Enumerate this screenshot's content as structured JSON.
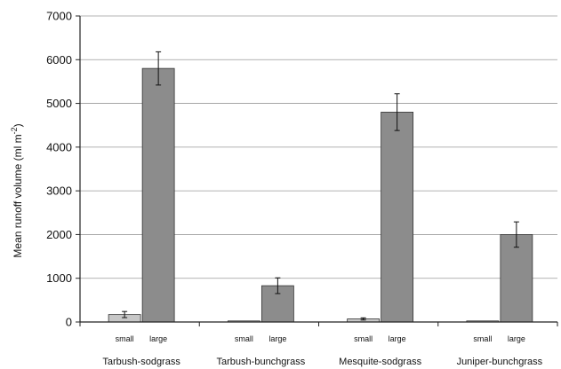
{
  "chart_data": {
    "type": "bar",
    "ylabel_main": "Mean runoff volume (ml m",
    "ylabel_sup": "-2",
    "ylabel_close": ")",
    "ylim": [
      0,
      7000
    ],
    "yticks": [
      0,
      1000,
      2000,
      3000,
      4000,
      5000,
      6000,
      7000
    ],
    "grid": true,
    "categories": [
      "Tarbush-sodgrass",
      "Tarbush-bunchgrass",
      "Mesquite-sodgrass",
      "Juniper-bunchgrass"
    ],
    "sub_labels": [
      "small",
      "large"
    ],
    "series": [
      {
        "name": "small",
        "values": [
          170,
          20,
          70,
          20
        ],
        "errors": [
          70,
          0,
          25,
          0
        ],
        "color": "#c7c7c7"
      },
      {
        "name": "large",
        "values": [
          5800,
          830,
          4800,
          2000
        ],
        "errors": [
          380,
          180,
          420,
          290
        ],
        "color": "#8c8c8c"
      }
    ]
  }
}
